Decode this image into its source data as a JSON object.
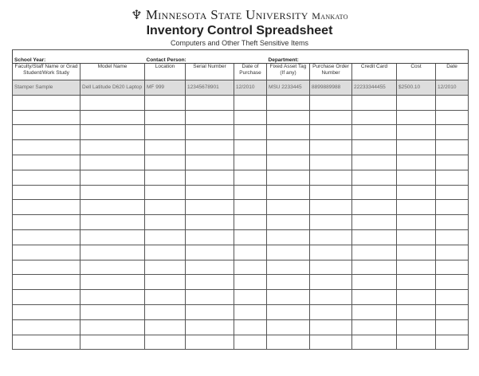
{
  "header": {
    "university": "Minnesota State University",
    "university_suffix": "Mankato",
    "title": "Inventory Control Spreadsheet",
    "subtitle": "Computers and Other Theft Sensitive Items"
  },
  "form": {
    "school_year_label": "School Year:",
    "contact_person_label": "Contact Person:",
    "department_label": "Department:"
  },
  "columns": [
    "Faculty/Staff Name or Grad Student/Work Study",
    "Model Name",
    "Location",
    "Serial Number",
    "Date of Purchase",
    "Fixed Asset Tag (If any)",
    "Purchase Order Number",
    "Credit Card",
    "Cost",
    "Date"
  ],
  "sample_row": [
    "Stamper Sample",
    "Dell Latitude D620 Laptop",
    "MF 999",
    "12345678901",
    "12/2010",
    "MSU 2233445",
    "8899889988",
    "22233344455",
    "$2500.10",
    "12/2010"
  ],
  "empty_rows": 17
}
